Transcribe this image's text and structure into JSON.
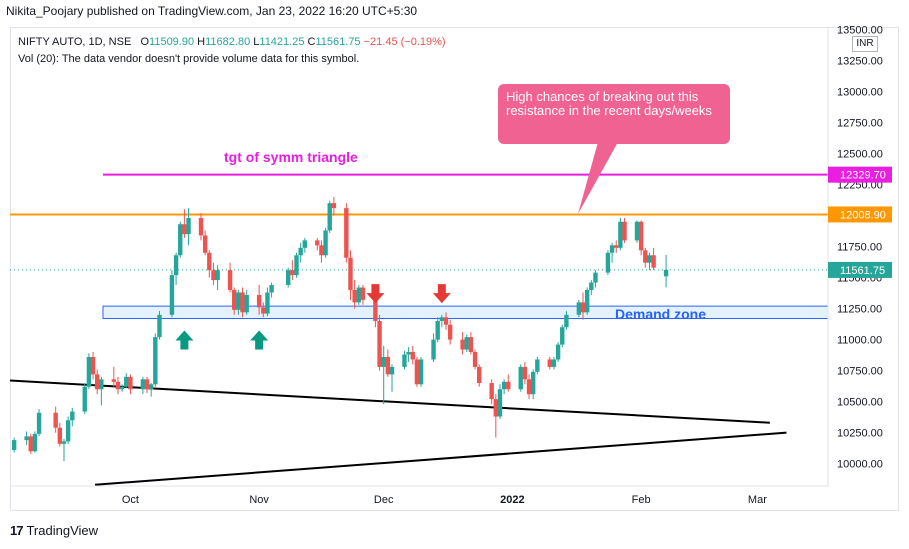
{
  "header": {
    "published": "Nikita_Poojary published on TradingView.com, Jan 23, 2022 16:20 UTC+5:30"
  },
  "legend": {
    "symbol": "NIFTY AUTO, 1D, NSE",
    "open_label": "O",
    "open": "11509.90",
    "high_label": "H",
    "high": "11682.80",
    "low_label": "L",
    "low": "11421.25",
    "close_label": "C",
    "close": "11561.75",
    "change": "−21.45 (−0.19%)",
    "volume_note": "Vol (20): The data vendor doesn't provide volume data for this symbol."
  },
  "currency": "INR",
  "footer": {
    "brand": "TradingView"
  },
  "annotations": {
    "callout": "High chances of breaking out this resistance in the recent days/weeks",
    "target_label": "tgt of symm triangle",
    "demand_label": "Demand zone"
  },
  "colors": {
    "up": "#26a69a",
    "down": "#ef5350",
    "target": "#e91ee0",
    "resistance": "#ff9800",
    "demand_fill": "#e3f2fd",
    "demand_border": "#2962ff",
    "trendline": "#000000",
    "callout": "#f06292",
    "up_arrow": "#089981",
    "down_arrow": "#e53935"
  },
  "chart_data": {
    "type": "candlestick",
    "y_ticks": [
      10000,
      10250,
      10500,
      10750,
      11000,
      11250,
      11500,
      11750,
      12000,
      12250,
      12500,
      12750,
      13000,
      13250,
      13500
    ],
    "y_tick_labels": [
      "10000.00",
      "10250.00",
      "10500.00",
      "10750.00",
      "11000.00",
      "11250.00",
      "11500.00",
      "11750.00",
      "12000.00",
      "12250.00",
      "12500.00",
      "12750.00",
      "13000.00",
      "13250.00",
      "13500.00"
    ],
    "ylim": [
      9820,
      13520
    ],
    "x_labels": [
      {
        "label": "Oct",
        "date": "2021-10-01"
      },
      {
        "label": "Nov",
        "date": "2021-11-01"
      },
      {
        "label": "Dec",
        "date": "2021-12-01"
      },
      {
        "label": "2022",
        "date": "2022-01-01"
      },
      {
        "label": "Feb",
        "date": "2022-02-01"
      },
      {
        "label": "Mar",
        "date": "2022-03-01"
      }
    ],
    "xlim": [
      "2021-09-02",
      "2022-03-18"
    ],
    "price_labels": [
      {
        "value": 12329.7,
        "text": "12329.70",
        "color": "#e91ee0"
      },
      {
        "value": 12008.9,
        "text": "12008.90",
        "color": "#ff9800"
      },
      {
        "value": 11561.75,
        "text": "11561.75",
        "color": "#26a69a"
      }
    ],
    "lines": {
      "target": 12329.7,
      "resistance": 12008.9,
      "last": 11561.75,
      "demand_zone": [
        11170,
        11270
      ],
      "upper_trendline": [
        [
          "2021-09-02",
          10670
        ],
        [
          "2022-03-04",
          10330
        ]
      ],
      "lower_trendline": [
        [
          "2021-09-02",
          9830
        ],
        [
          "2022-03-08",
          10250
        ]
      ]
    },
    "markers": [
      {
        "date": "2021-10-14",
        "type": "up"
      },
      {
        "date": "2021-11-01",
        "type": "up"
      },
      {
        "date": "2021-11-29",
        "type": "down"
      },
      {
        "date": "2021-12-15",
        "type": "down"
      }
    ],
    "candles": [
      [
        "2021-09-03",
        10110,
        10210,
        10090,
        10190
      ],
      [
        "2021-09-06",
        10190,
        10260,
        10150,
        10220
      ],
      [
        "2021-09-07",
        10220,
        10240,
        10080,
        10100
      ],
      [
        "2021-09-08",
        10100,
        10260,
        10090,
        10240
      ],
      [
        "2021-09-09",
        10240,
        10440,
        10220,
        10410
      ],
      [
        "2021-09-13",
        10410,
        10460,
        10250,
        10290
      ],
      [
        "2021-09-14",
        10290,
        10330,
        10140,
        10160
      ],
      [
        "2021-09-15",
        10160,
        10200,
        10020,
        10180
      ],
      [
        "2021-09-16",
        10180,
        10380,
        10160,
        10350
      ],
      [
        "2021-09-17",
        10350,
        10450,
        10300,
        10420
      ],
      [
        "2021-09-20",
        10420,
        10650,
        10400,
        10620
      ],
      [
        "2021-09-21",
        10620,
        10890,
        10600,
        10860
      ],
      [
        "2021-09-22",
        10860,
        10900,
        10680,
        10720
      ],
      [
        "2021-09-23",
        10720,
        10760,
        10560,
        10600
      ],
      [
        "2021-09-24",
        10600,
        10700,
        10470,
        10680
      ],
      [
        "2021-09-27",
        10680,
        10780,
        10620,
        10660
      ],
      [
        "2021-09-28",
        10660,
        10700,
        10560,
        10600
      ],
      [
        "2021-09-29",
        10600,
        10640,
        10580,
        10620
      ],
      [
        "2021-09-30",
        10620,
        10730,
        10610,
        10700
      ],
      [
        "2021-10-01",
        10700,
        10720,
        10560,
        10600
      ],
      [
        "2021-10-04",
        10600,
        10700,
        10560,
        10680
      ],
      [
        "2021-10-05",
        10680,
        10700,
        10570,
        10600
      ],
      [
        "2021-10-06",
        10600,
        10650,
        10540,
        10640
      ],
      [
        "2021-10-07",
        10640,
        11050,
        10620,
        11020
      ],
      [
        "2021-10-08",
        11020,
        11230,
        11000,
        11200
      ],
      [
        "2021-10-11",
        11200,
        11560,
        11180,
        11520
      ],
      [
        "2021-10-12",
        11520,
        11700,
        11440,
        11680
      ],
      [
        "2021-10-13",
        11680,
        11950,
        11660,
        11930
      ],
      [
        "2021-10-14",
        11930,
        12050,
        11820,
        11850
      ],
      [
        "2021-10-15",
        11850,
        12060,
        11760,
        11980
      ],
      [
        "2021-10-18",
        11980,
        12020,
        11800,
        11840
      ],
      [
        "2021-10-19",
        11840,
        11880,
        11680,
        11700
      ],
      [
        "2021-10-20",
        11700,
        11720,
        11500,
        11560
      ],
      [
        "2021-10-21",
        11560,
        11620,
        11440,
        11480
      ],
      [
        "2021-10-22",
        11480,
        11600,
        11400,
        11560
      ],
      [
        "2021-10-25",
        11560,
        11620,
        11380,
        11400
      ],
      [
        "2021-10-26",
        11400,
        11420,
        11200,
        11240
      ],
      [
        "2021-10-27",
        11240,
        11400,
        11200,
        11380
      ],
      [
        "2021-10-28",
        11380,
        11420,
        11180,
        11220
      ],
      [
        "2021-10-29",
        11220,
        11400,
        11200,
        11360
      ],
      [
        "2021-11-01",
        11360,
        11440,
        11200,
        11260
      ],
      [
        "2021-11-02",
        11260,
        11300,
        11180,
        11210
      ],
      [
        "2021-11-03",
        11210,
        11420,
        11190,
        11380
      ],
      [
        "2021-11-04",
        11380,
        11460,
        11340,
        11440
      ],
      [
        "2021-11-08",
        11440,
        11580,
        11420,
        11560
      ],
      [
        "2021-11-09",
        11560,
        11640,
        11480,
        11520
      ],
      [
        "2021-11-10",
        11520,
        11700,
        11500,
        11680
      ],
      [
        "2021-11-11",
        11680,
        11780,
        11620,
        11740
      ],
      [
        "2021-11-12",
        11740,
        11820,
        11700,
        11800
      ],
      [
        "2021-11-15",
        11800,
        11820,
        11720,
        11760
      ],
      [
        "2021-11-16",
        11760,
        11800,
        11620,
        11680
      ],
      [
        "2021-11-17",
        11680,
        11900,
        11660,
        11880
      ],
      [
        "2021-11-18",
        11880,
        12120,
        11860,
        12100
      ],
      [
        "2021-11-19",
        12100,
        12150,
        12000,
        12060
      ],
      [
        "2021-11-22",
        12060,
        12100,
        11620,
        11660
      ],
      [
        "2021-11-23",
        11660,
        11720,
        11320,
        11400
      ],
      [
        "2021-11-24",
        11400,
        11480,
        11250,
        11300
      ],
      [
        "2021-11-25",
        11300,
        11440,
        11280,
        11420
      ],
      [
        "2021-11-26",
        11420,
        11440,
        11280,
        11320
      ],
      [
        "2021-11-29",
        11320,
        11340,
        11100,
        11150
      ],
      [
        "2021-11-30",
        11150,
        11200,
        10750,
        10780
      ],
      [
        "2021-12-01",
        10780,
        10950,
        10480,
        10860
      ],
      [
        "2021-12-02",
        10860,
        10920,
        10700,
        10720
      ],
      [
        "2021-12-03",
        10720,
        10800,
        10580,
        10780
      ],
      [
        "2021-12-06",
        10780,
        10910,
        10760,
        10880
      ],
      [
        "2021-12-07",
        10880,
        10940,
        10820,
        10900
      ],
      [
        "2021-12-08",
        10900,
        10950,
        10800,
        10840
      ],
      [
        "2021-12-09",
        10840,
        10860,
        10620,
        10640
      ],
      [
        "2021-12-10",
        10640,
        10860,
        10620,
        10840
      ],
      [
        "2021-12-13",
        10840,
        11050,
        10820,
        11000
      ],
      [
        "2021-12-14",
        11000,
        11180,
        10980,
        11150
      ],
      [
        "2021-12-15",
        11150,
        11200,
        11100,
        11180
      ],
      [
        "2021-12-16",
        11180,
        11220,
        11080,
        11120
      ],
      [
        "2021-12-17",
        11120,
        11160,
        10960,
        11000
      ],
      [
        "2021-12-20",
        11000,
        11060,
        10880,
        10920
      ],
      [
        "2021-12-21",
        10920,
        11040,
        10900,
        11020
      ],
      [
        "2021-12-22",
        11020,
        11060,
        10880,
        10900
      ],
      [
        "2021-12-23",
        10900,
        10920,
        10760,
        10780
      ],
      [
        "2021-12-24",
        10780,
        10800,
        10620,
        10650
      ],
      [
        "2021-12-27",
        10650,
        10680,
        10480,
        10520
      ],
      [
        "2021-12-28",
        10520,
        10560,
        10210,
        10380
      ],
      [
        "2021-12-29",
        10380,
        10640,
        10360,
        10600
      ],
      [
        "2021-12-30",
        10600,
        10680,
        10560,
        10660
      ],
      [
        "2021-12-31",
        10660,
        10720,
        10580,
        10600
      ],
      [
        "2022-01-03",
        10600,
        10800,
        10580,
        10780
      ],
      [
        "2022-01-04",
        10780,
        10820,
        10640,
        10680
      ],
      [
        "2022-01-05",
        10680,
        10720,
        10520,
        10560
      ],
      [
        "2022-01-06",
        10560,
        10760,
        10520,
        10740
      ],
      [
        "2022-01-07",
        10740,
        10860,
        10720,
        10840
      ],
      [
        "2022-01-10",
        10840,
        10860,
        10760,
        10780
      ],
      [
        "2022-01-11",
        10780,
        10860,
        10760,
        10840
      ],
      [
        "2022-01-12",
        10840,
        10980,
        10820,
        10960
      ],
      [
        "2022-01-13",
        10960,
        11120,
        10940,
        11100
      ],
      [
        "2022-01-14",
        11100,
        11230,
        11080,
        11200
      ],
      [
        "2022-01-17",
        11200,
        11320,
        11180,
        11300
      ],
      [
        "2022-01-18",
        11300,
        11380,
        11160,
        11220
      ],
      [
        "2022-01-19",
        11220,
        11420,
        11200,
        11400
      ],
      [
        "2022-01-20",
        11400,
        11480,
        11360,
        11460
      ],
      [
        "2022-01-21",
        11460,
        11560,
        11420,
        11540
      ],
      [
        "2022-01-24",
        11540,
        11720,
        11520,
        11700
      ],
      [
        "2022-01-25",
        11700,
        11780,
        11620,
        11760
      ],
      [
        "2022-01-26",
        11760,
        11800,
        11700,
        11740
      ],
      [
        "2022-01-27",
        11740,
        11980,
        11720,
        11950
      ],
      [
        "2022-01-28",
        11950,
        11980,
        11780,
        11800
      ],
      [
        "2022-01-31",
        11800,
        11960,
        11780,
        11950
      ],
      [
        "2022-02-01",
        11950,
        11960,
        11680,
        11720
      ],
      [
        "2022-02-02",
        11720,
        11740,
        11580,
        11620
      ],
      [
        "2022-02-03",
        11620,
        11700,
        11560,
        11680
      ],
      [
        "2022-02-04",
        11680,
        11740,
        11560,
        11580
      ],
      [
        "2022-02-07",
        11509.9,
        11682.8,
        11421.25,
        11561.75
      ]
    ]
  }
}
